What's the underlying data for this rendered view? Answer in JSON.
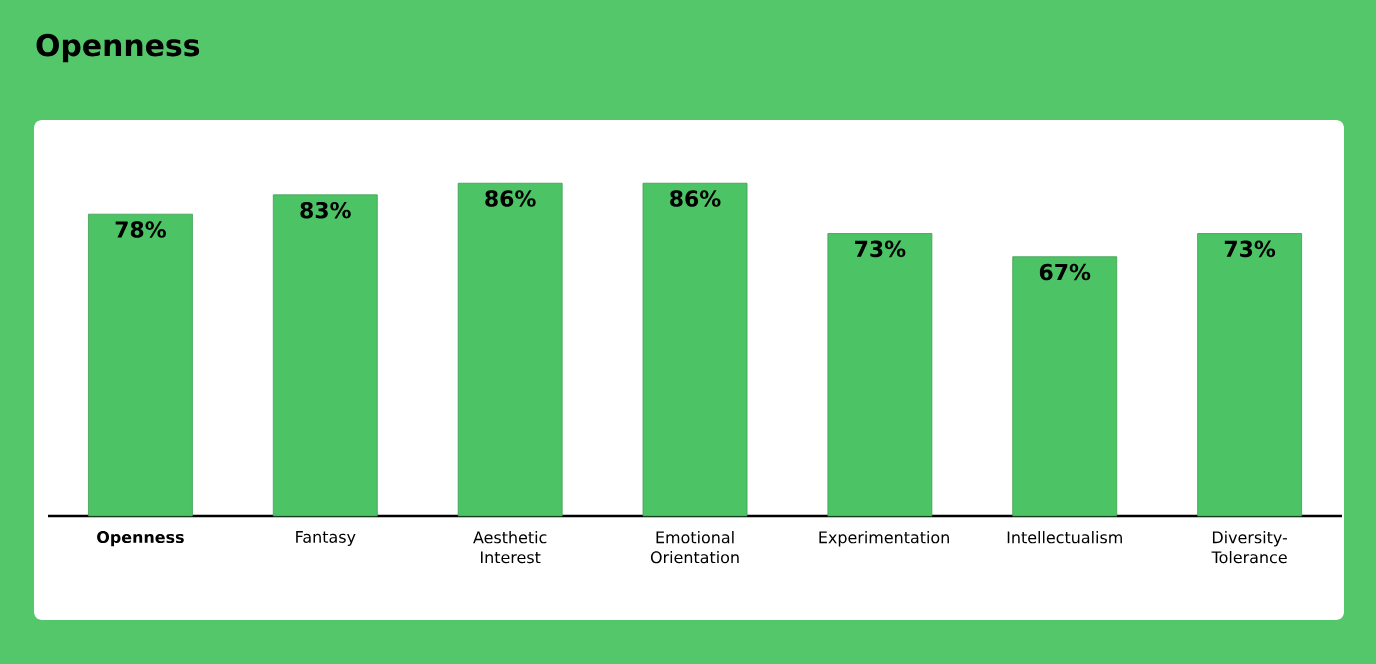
{
  "chart_data": {
    "type": "bar",
    "title": "Openness",
    "categories": [
      "**Openness**",
      "Fantasy",
      "Aesthetic Interest",
      "Emotional Orientation",
      "Experimentation",
      "Intellectualism",
      "Diversity-Tolerance"
    ],
    "values": [
      78,
      83,
      86,
      86,
      73,
      67,
      73
    ],
    "value_labels": [
      "78%",
      "83%",
      "86%",
      "86%",
      "73%",
      "67%",
      "73%"
    ],
    "color": "#4cc466"
  }
}
